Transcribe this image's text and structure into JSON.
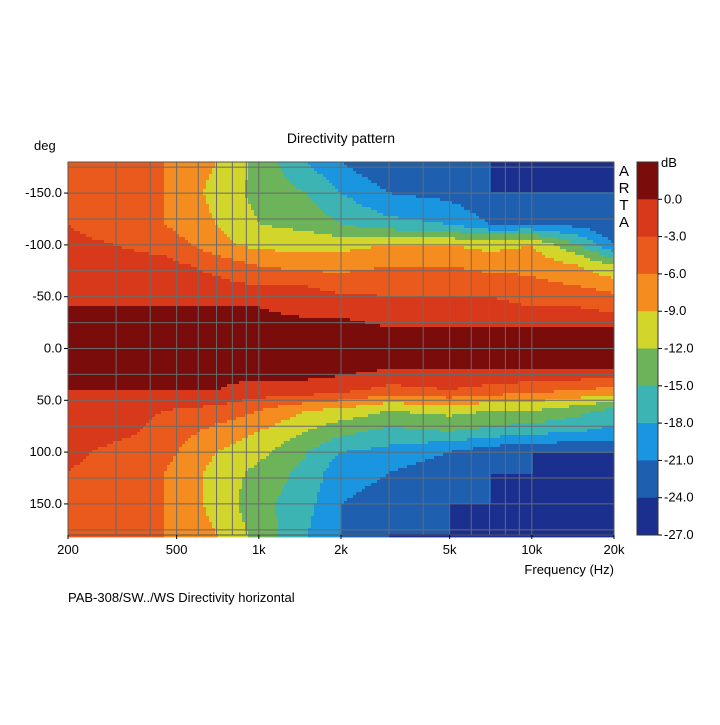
{
  "chart_data": {
    "type": "heatmap",
    "title": "Directivity pattern",
    "ylabel": "deg",
    "xlabel": "Frequency (Hz)",
    "caption": "PAB-308/SW../WS  Directivity horizontal",
    "brand": [
      "A",
      "R",
      "T",
      "A"
    ],
    "x_scale": "log",
    "xlim": [
      200,
      20000
    ],
    "ylim": [
      -180,
      180
    ],
    "y_inverted": true,
    "x_ticks": [
      {
        "value": 200,
        "label": "200"
      },
      {
        "value": 500,
        "label": "500"
      },
      {
        "value": 1000,
        "label": "1k"
      },
      {
        "value": 2000,
        "label": "2k"
      },
      {
        "value": 5000,
        "label": "5k"
      },
      {
        "value": 10000,
        "label": "10k"
      },
      {
        "value": 20000,
        "label": "20k"
      }
    ],
    "y_ticks": [
      {
        "value": -150,
        "label": "-150.0"
      },
      {
        "value": -100,
        "label": "-100.0"
      },
      {
        "value": -50,
        "label": "-50.0"
      },
      {
        "value": 0,
        "label": "0.0"
      },
      {
        "value": 50,
        "label": "50.0"
      },
      {
        "value": 100,
        "label": "100.0"
      },
      {
        "value": 150,
        "label": "150.0"
      }
    ],
    "grid": true,
    "colorbar": {
      "unit": "dB",
      "labels": [
        "0.0",
        "-3.0",
        "-6.0",
        "-9.0",
        "-12.0",
        "-15.0",
        "-18.0",
        "-21.0",
        "-24.0",
        "-27.0"
      ],
      "colors": [
        "#7a0c0c",
        "#d9391b",
        "#ea5a1c",
        "#f58c1f",
        "#d2d62a",
        "#6cb35a",
        "#3cb4b4",
        "#1a96e0",
        "#1f5fb0",
        "#1b2f8f"
      ]
    },
    "frequencies": [
      200,
      300,
      450,
      700,
      1000,
      1500,
      2000,
      3000,
      5000,
      7000,
      10000,
      15000,
      20000
    ],
    "angles": [
      -180,
      -150,
      -120,
      -100,
      -80,
      -60,
      -40,
      -20,
      0,
      20,
      40,
      60,
      80,
      100,
      120,
      150,
      180
    ],
    "levels_db": [
      [
        -6,
        -7,
        -9,
        -12,
        -16,
        -21,
        -24,
        -27,
        -27,
        -27,
        -27,
        -27,
        -27
      ],
      [
        -7,
        -9,
        -9,
        -13,
        -16,
        -18,
        -21,
        -24,
        -25,
        -27,
        -27,
        -27,
        -27
      ],
      [
        -6,
        -8,
        -9,
        -12,
        -15,
        -16,
        -18,
        -20,
        -21,
        -24,
        -24,
        -25,
        -27
      ],
      [
        -5,
        -6,
        -7,
        -11,
        -13,
        -13,
        -13,
        -12,
        -12,
        -13,
        -12,
        -18,
        -24
      ],
      [
        -4,
        -5,
        -5,
        -7,
        -9,
        -10,
        -10,
        -9,
        -9,
        -10,
        -10,
        -12,
        -15
      ],
      [
        -3,
        -4,
        -4,
        -5,
        -6,
        -6,
        -7,
        -7,
        -7,
        -7,
        -8,
        -9,
        -10
      ],
      [
        -3,
        -3,
        -3,
        -3,
        -3,
        -4,
        -4,
        -5,
        -5,
        -5,
        -6,
        -6,
        -7
      ],
      [
        -2,
        -2,
        -2,
        -2,
        -2,
        -2,
        -2,
        -3,
        -3,
        -3,
        -3,
        -3,
        -3
      ],
      [
        -2,
        -2,
        -2,
        -2,
        -1,
        -2,
        -1,
        -2,
        -2,
        -2,
        -1,
        -1,
        -2
      ],
      [
        -2,
        -2,
        -2,
        -2,
        -2,
        -2,
        -2,
        -3,
        -3,
        -3,
        -3,
        -3,
        -3
      ],
      [
        -3,
        -3,
        -3,
        -3,
        -4,
        -4,
        -5,
        -7,
        -6,
        -7,
        -8,
        -9,
        -10
      ],
      [
        -4,
        -5,
        -6,
        -7,
        -9,
        -12,
        -13,
        -15,
        -14,
        -15,
        -15,
        -17,
        -19
      ],
      [
        -4,
        -5,
        -7,
        -10,
        -12,
        -15,
        -17,
        -19,
        -18,
        -19,
        -20,
        -21,
        -22
      ],
      [
        -5,
        -7,
        -8,
        -12,
        -14,
        -18,
        -21,
        -22,
        -24,
        -26,
        -27,
        -27,
        -27
      ],
      [
        -6,
        -8,
        -9,
        -13,
        -16,
        -19,
        -23,
        -24,
        -26,
        -27,
        -27,
        -27,
        -27
      ],
      [
        -7,
        -8,
        -9,
        -13,
        -17,
        -20,
        -24,
        -25,
        -27,
        -27,
        -27,
        -27,
        -27
      ],
      [
        -6,
        -7,
        -9,
        -12,
        -16,
        -21,
        -24,
        -27,
        -27,
        -27,
        -27,
        -27,
        -27
      ]
    ],
    "hotspots_freq": [
      300,
      1000,
      2000,
      11000,
      17000
    ],
    "hotspots_angle": [
      0,
      0,
      3,
      0,
      0
    ]
  }
}
